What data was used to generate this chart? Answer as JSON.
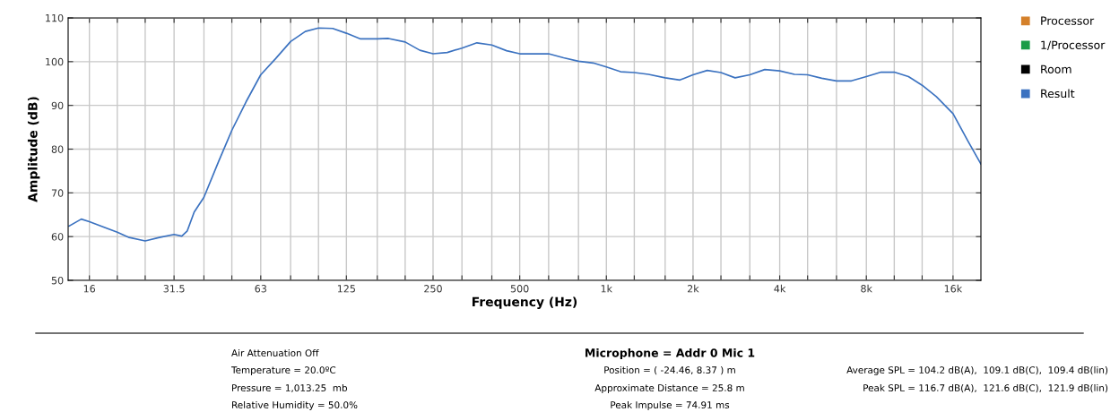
{
  "chart_data": {
    "type": "line",
    "xlabel": "Frequency (Hz)",
    "ylabel": "Amplitude (dB)",
    "log": "x",
    "grid": true,
    "legend": "top right",
    "xlim": [
      13.5,
      20000
    ],
    "ylim": [
      50,
      110
    ],
    "xticks": [
      16,
      {
        "value": 20,
        "label": null
      },
      {
        "value": 25,
        "label": null
      },
      31.5,
      {
        "value": 40,
        "label": null
      },
      {
        "value": 50,
        "label": null
      },
      63,
      {
        "value": 80,
        "label": null
      },
      {
        "value": 100,
        "label": null
      },
      125,
      {
        "value": 160,
        "label": null
      },
      {
        "value": 200,
        "label": null
      },
      250,
      {
        "value": 315,
        "label": null
      },
      {
        "value": 400,
        "label": null
      },
      500,
      {
        "value": 630,
        "label": null
      },
      {
        "value": 800,
        "label": null
      },
      {
        "value": 1000,
        "label": "1k"
      },
      {
        "value": 1250,
        "label": null
      },
      {
        "value": 1600,
        "label": null
      },
      {
        "value": 2000,
        "label": "2k"
      },
      {
        "value": 2500,
        "label": null
      },
      {
        "value": 3150,
        "label": null
      },
      {
        "value": 4000,
        "label": "4k"
      },
      {
        "value": 5000,
        "label": null
      },
      {
        "value": 6300,
        "label": null
      },
      {
        "value": 8000,
        "label": "8k"
      },
      {
        "value": 10000,
        "label": null
      },
      {
        "value": 12500,
        "label": null
      },
      {
        "value": 16000,
        "label": "16k"
      }
    ],
    "yticks": [
      50,
      60,
      70,
      80,
      90,
      100,
      110
    ],
    "series": [
      {
        "name": "Processor",
        "color": "#d4802a"
      },
      {
        "name": "1/Processor",
        "color": "#1a9c47"
      },
      {
        "name": "Room",
        "color": "#000000"
      },
      {
        "name": "Result",
        "color": "#3b72c0",
        "x": [
          13.6,
          15,
          16,
          20,
          22,
          25,
          28,
          31.5,
          33.5,
          35,
          37,
          40,
          45,
          50,
          56,
          63,
          71,
          80,
          90,
          100,
          112,
          125,
          140,
          160,
          175,
          200,
          225,
          250,
          280,
          315,
          355,
          400,
          450,
          500,
          560,
          630,
          710,
          800,
          900,
          1000,
          1120,
          1250,
          1400,
          1600,
          1800,
          2000,
          2240,
          2500,
          2800,
          3150,
          3550,
          4000,
          4500,
          5000,
          5600,
          6300,
          7100,
          8000,
          9000,
          10000,
          11200,
          12500,
          14000,
          16000,
          18000,
          20000
        ],
        "values": [
          62.4,
          64.0,
          63.4,
          61.0,
          59.8,
          59.0,
          59.8,
          60.5,
          60.1,
          61.3,
          65.6,
          69.0,
          77.2,
          84.3,
          90.8,
          97.0,
          100.7,
          104.6,
          106.9,
          107.7,
          107.6,
          106.5,
          105.2,
          105.2,
          105.3,
          104.5,
          102.6,
          101.8,
          102.1,
          103.1,
          104.3,
          103.8,
          102.5,
          101.8,
          101.8,
          101.8,
          100.9,
          100.1,
          99.7,
          98.8,
          97.7,
          97.5,
          97.1,
          96.3,
          95.8,
          97.0,
          98.0,
          97.5,
          96.3,
          97.0,
          98.2,
          97.9,
          97.1,
          97.0,
          96.2,
          95.6,
          95.6,
          96.6,
          97.6,
          97.6,
          96.6,
          94.6,
          92.0,
          88.1,
          81.9,
          76.6
        ]
      }
    ],
    "annotations": [
      "Air Attenuation Off",
      "Temperature = 20.0ºC",
      "Pressure = 1,013.25  mb",
      "Relative Humidity = 50.0%",
      "Microphone = Addr 0 Mic 1",
      "Position = ( -24.46, 8.37 ) m",
      "Approximate Distance = 25.8 m",
      "Peak Impulse = 74.91 ms",
      "Average SPL = 104.2 dB(A),  109.1 dB(C),  109.4 dB(lin)",
      "Peak SPL = 116.7 dB(A),  121.6 dB(C),  121.9 dB(lin)"
    ]
  }
}
